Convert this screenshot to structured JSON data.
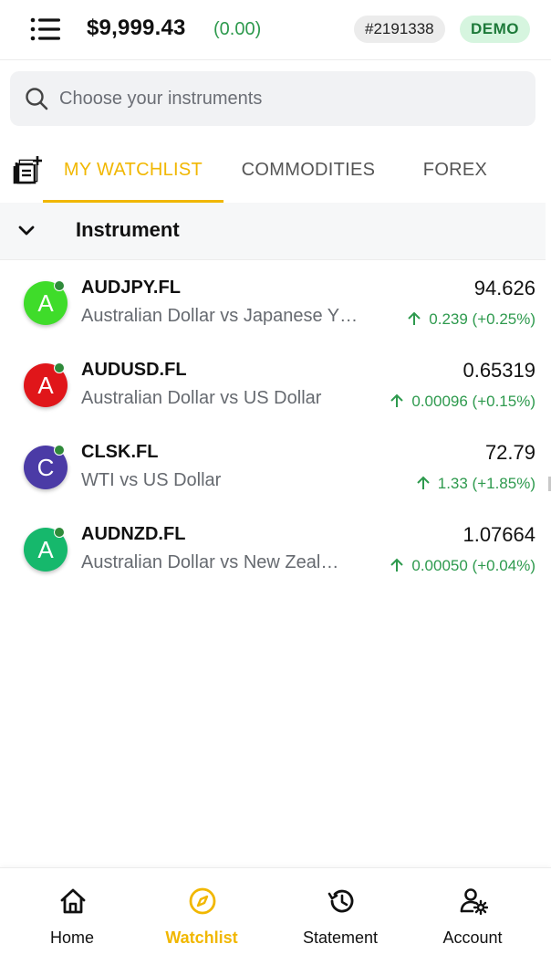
{
  "header": {
    "balance": "$9,999.43",
    "balance_change": "(0.00)",
    "account_id": "#2191338",
    "account_mode": "DEMO"
  },
  "search": {
    "placeholder": "Choose your instruments"
  },
  "tabs": [
    {
      "label": "MY WATCHLIST",
      "active": true
    },
    {
      "label": "COMMODITIES",
      "active": false
    },
    {
      "label": "FOREX",
      "active": false
    }
  ],
  "group": {
    "title": "Instrument"
  },
  "instruments": [
    {
      "letter": "A",
      "avatar_color": "#3fdc2a",
      "symbol": "AUDJPY.FL",
      "description": "Australian Dollar vs Japanese Y…",
      "price": "94.626",
      "change": "0.239 (+0.25%)"
    },
    {
      "letter": "A",
      "avatar_color": "#e0161a",
      "symbol": "AUDUSD.FL",
      "description": "Australian Dollar vs US Dollar",
      "price": "0.65319",
      "change": "0.00096 (+0.15%)"
    },
    {
      "letter": "C",
      "avatar_color": "#4b3ba6",
      "symbol": "CLSK.FL",
      "description": "WTI vs US Dollar",
      "price": "72.79",
      "change": "1.33 (+1.85%)"
    },
    {
      "letter": "A",
      "avatar_color": "#16b86c",
      "symbol": "AUDNZD.FL",
      "description": "Australian Dollar vs New Zeal…",
      "price": "1.07664",
      "change": "0.00050 (+0.04%)"
    }
  ],
  "nav": [
    {
      "label": "Home",
      "icon": "home-icon",
      "active": false
    },
    {
      "label": "Watchlist",
      "icon": "compass-icon",
      "active": true
    },
    {
      "label": "Statement",
      "icon": "history-icon",
      "active": false
    },
    {
      "label": "Account",
      "icon": "account-settings-icon",
      "active": false
    }
  ],
  "colors": {
    "accent": "#f1b700",
    "positive": "#2e9a4e",
    "demo_bg": "#d6f5df"
  }
}
